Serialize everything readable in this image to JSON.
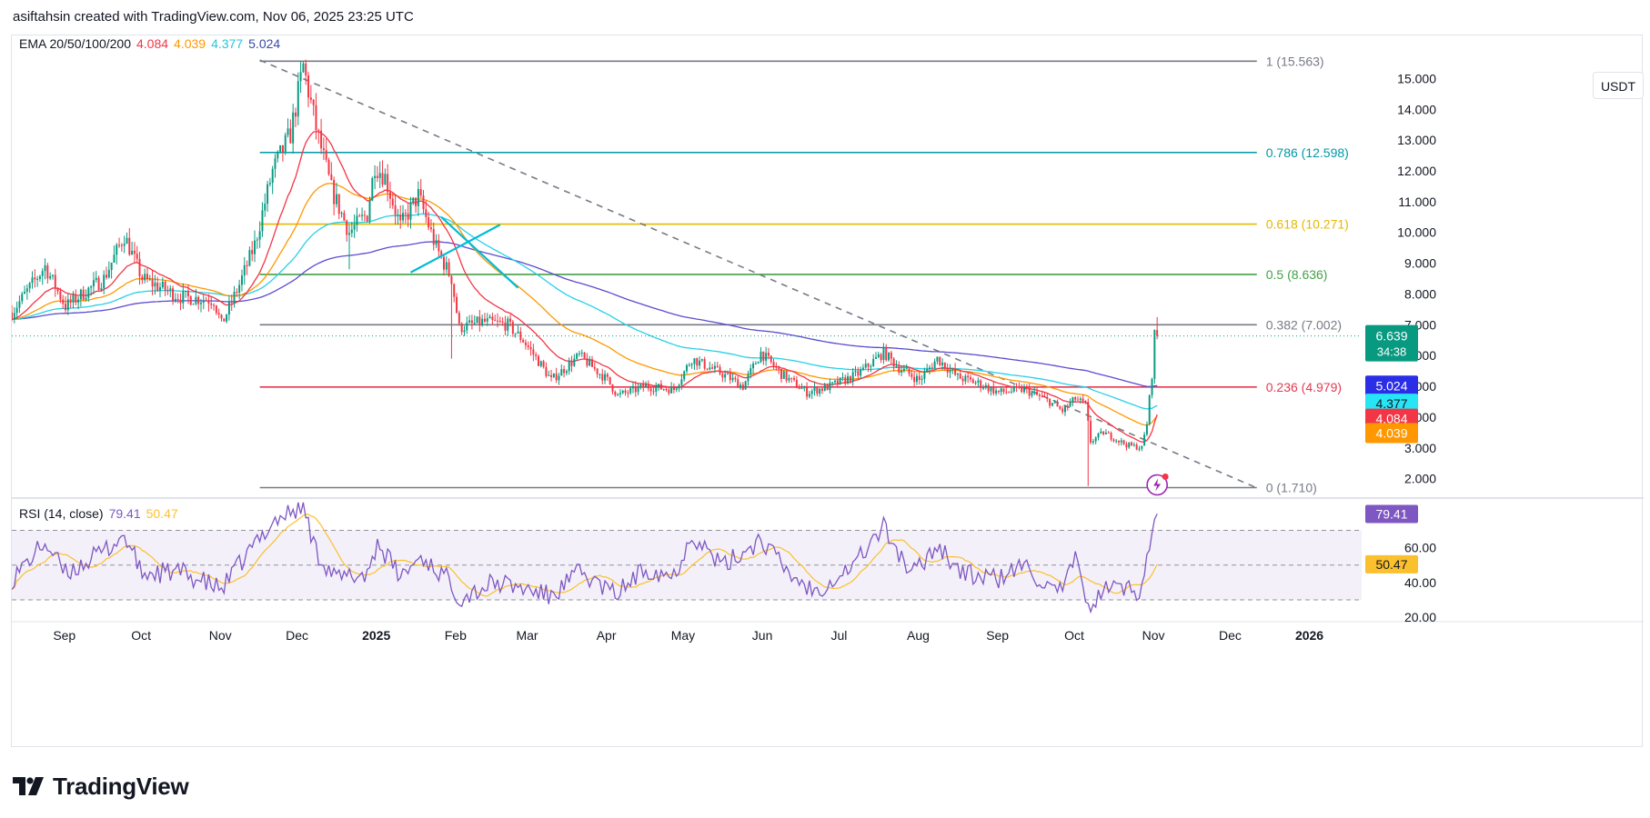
{
  "header": {
    "text": "asiftahsin created with TradingView.com, Nov 06, 2025 23:25 UTC"
  },
  "currency": "USDT",
  "brand": {
    "name": "TradingView"
  },
  "colors": {
    "up": "#089981",
    "down": "#f23645",
    "ema20": "#f23645",
    "ema50": "#ff9800",
    "ema100": "#26d0e6",
    "ema200": "#5b4ccf",
    "rsi": "#7e57c2",
    "rsi_ma": "#fbc02d",
    "trendline": "#787b86"
  },
  "legend": {
    "ema": {
      "label": "EMA 20/50/100/200",
      "v20": "4.084",
      "v50": "4.039",
      "v100": "4.377",
      "v200": "5.024"
    },
    "rsi": {
      "label": "RSI (14, close)",
      "value": "79.41",
      "ma": "50.47"
    }
  },
  "chart_data": {
    "type": "candlestick",
    "symbol_quote": "USDT",
    "price_axis": {
      "ticks": [
        "2.000",
        "3.000",
        "4.000",
        "5.000",
        "6.000",
        "7.000",
        "8.000",
        "9.000",
        "10.000",
        "11.000",
        "12.000",
        "13.000",
        "14.000",
        "15.000"
      ],
      "range": [
        1.4,
        16.4
      ]
    },
    "time_axis": {
      "labels": [
        "Sep",
        "Oct",
        "Nov",
        "Dec",
        "2025",
        "Feb",
        "Mar",
        "Apr",
        "May",
        "Jun",
        "Jul",
        "Aug",
        "Sep",
        "Oct",
        "Nov",
        "Dec",
        "2026"
      ],
      "range": [
        "2024-08-15",
        "2026-01-25"
      ]
    },
    "last_price": {
      "value": "6.639",
      "countdown": "34:38"
    },
    "ema_badges": [
      {
        "value": "5.024",
        "color": "#2a2ee6",
        "text_color": "#ffffff"
      },
      {
        "value": "4.377",
        "color": "#26e6f5",
        "text_color": "#131722"
      },
      {
        "value": "4.084",
        "color": "#f23645",
        "text_color": "#ffffff"
      },
      {
        "value": "4.039",
        "color": "#ff9800",
        "text_color": "#ffffff"
      }
    ],
    "fibonacci": [
      {
        "level": "1",
        "price": 15.563,
        "label": "1 (15.563)",
        "color": "#787b86"
      },
      {
        "level": "0.786",
        "price": 12.598,
        "label": "0.786 (12.598)",
        "color": "#0097a7"
      },
      {
        "level": "0.618",
        "price": 10.271,
        "label": "0.618 (10.271)",
        "color": "#e6b800"
      },
      {
        "level": "0.5",
        "price": 8.636,
        "label": "0.5 (8.636)",
        "color": "#43a047"
      },
      {
        "level": "0.382",
        "price": 7.002,
        "label": "0.382 (7.002)",
        "color": "#787b86"
      },
      {
        "level": "0.236",
        "price": 4.979,
        "label": "0.236 (4.979)",
        "color": "#e53950"
      },
      {
        "level": "0",
        "price": 1.71,
        "label": "0 (1.710)",
        "color": "#787b86"
      }
    ],
    "fib_time_range": [
      "2024-11-20",
      "2025-12-15"
    ],
    "trendline": {
      "from": [
        "2024-11-20",
        15.6
      ],
      "to": [
        "2025-12-15",
        1.7
      ],
      "style": "dashed"
    },
    "cross_lines": [
      {
        "from": [
          "2025-01-30",
          10.5
        ],
        "to": [
          "2025-03-01",
          8.2
        ]
      },
      {
        "from": [
          "2025-01-18",
          8.7
        ],
        "to": [
          "2025-02-22",
          10.25
        ]
      }
    ],
    "price_anchors": [
      [
        "2024-08-15",
        7.4
      ],
      [
        "2024-08-28",
        8.9
      ],
      [
        "2024-09-05",
        7.6
      ],
      [
        "2024-09-20",
        8.5
      ],
      [
        "2024-09-28",
        9.9
      ],
      [
        "2024-10-05",
        8.5
      ],
      [
        "2024-10-20",
        7.9
      ],
      [
        "2024-11-02",
        7.8
      ],
      [
        "2024-11-05",
        7.0
      ],
      [
        "2024-11-12",
        8.3
      ],
      [
        "2024-11-18",
        9.6
      ],
      [
        "2024-11-25",
        12.0
      ],
      [
        "2024-12-02",
        13.2
      ],
      [
        "2024-12-07",
        15.4
      ],
      [
        "2024-12-12",
        13.4
      ],
      [
        "2024-12-18",
        11.4
      ],
      [
        "2024-12-25",
        10.0
      ],
      [
        "2025-01-01",
        10.6
      ],
      [
        "2025-01-04",
        12.2
      ],
      [
        "2025-01-08",
        11.8
      ],
      [
        "2025-01-14",
        10.2
      ],
      [
        "2025-01-21",
        11.2
      ],
      [
        "2025-01-28",
        9.5
      ],
      [
        "2025-02-03",
        8.5
      ],
      [
        "2025-02-06",
        6.9
      ],
      [
        "2025-02-15",
        7.1
      ],
      [
        "2025-02-25",
        7.0
      ],
      [
        "2025-03-03",
        6.5
      ],
      [
        "2025-03-10",
        5.7
      ],
      [
        "2025-03-14",
        5.2
      ],
      [
        "2025-03-25",
        6.0
      ],
      [
        "2025-04-05",
        5.2
      ],
      [
        "2025-04-09",
        4.7
      ],
      [
        "2025-04-20",
        5.0
      ],
      [
        "2025-05-01",
        4.9
      ],
      [
        "2025-05-08",
        5.9
      ],
      [
        "2025-05-20",
        5.4
      ],
      [
        "2025-05-28",
        5.0
      ],
      [
        "2025-06-04",
        6.1
      ],
      [
        "2025-06-12",
        5.4
      ],
      [
        "2025-06-22",
        4.8
      ],
      [
        "2025-07-01",
        5.0
      ],
      [
        "2025-07-12",
        5.4
      ],
      [
        "2025-07-22",
        6.1
      ],
      [
        "2025-07-28",
        5.6
      ],
      [
        "2025-08-05",
        5.2
      ],
      [
        "2025-08-12",
        5.9
      ],
      [
        "2025-08-20",
        5.3
      ],
      [
        "2025-08-28",
        5.1
      ],
      [
        "2025-09-05",
        4.8
      ],
      [
        "2025-09-15",
        4.9
      ],
      [
        "2025-09-25",
        4.5
      ],
      [
        "2025-09-30",
        4.2
      ],
      [
        "2025-10-05",
        4.6
      ],
      [
        "2025-10-09",
        4.4
      ],
      [
        "2025-10-11",
        3.2
      ],
      [
        "2025-10-16",
        3.5
      ],
      [
        "2025-10-25",
        3.1
      ],
      [
        "2025-10-31",
        3.0
      ],
      [
        "2025-11-02",
        3.8
      ],
      [
        "2025-11-04",
        5.4
      ],
      [
        "2025-11-05",
        6.7
      ],
      [
        "2025-11-06",
        6.64
      ]
    ],
    "ema_endpoints": {
      "ema20": 4.084,
      "ema50": 4.039,
      "ema100": 4.377,
      "ema200": 5.024
    },
    "rsi_panel": {
      "ticks": [
        "20.00",
        "40.00",
        "60.00"
      ],
      "range": [
        18,
        88
      ],
      "bands": {
        "upper": 70,
        "middle": 50,
        "lower": 30
      },
      "last": {
        "rsi": "79.41",
        "ma": "50.47"
      },
      "anchors": [
        [
          "2024-08-15",
          42
        ],
        [
          "2024-08-28",
          63
        ],
        [
          "2024-09-05",
          45
        ],
        [
          "2024-09-20",
          58
        ],
        [
          "2024-09-28",
          67
        ],
        [
          "2024-10-05",
          45
        ],
        [
          "2024-10-20",
          46
        ],
        [
          "2024-11-05",
          36
        ],
        [
          "2024-11-18",
          62
        ],
        [
          "2024-11-25",
          75
        ],
        [
          "2024-12-07",
          84
        ],
        [
          "2024-12-12",
          58
        ],
        [
          "2024-12-20",
          42
        ],
        [
          "2025-01-01",
          45
        ],
        [
          "2025-01-05",
          63
        ],
        [
          "2025-01-14",
          43
        ],
        [
          "2025-01-22",
          55
        ],
        [
          "2025-02-03",
          40
        ],
        [
          "2025-02-06",
          31
        ],
        [
          "2025-02-20",
          40
        ],
        [
          "2025-03-05",
          36
        ],
        [
          "2025-03-14",
          32
        ],
        [
          "2025-03-25",
          46
        ],
        [
          "2025-04-08",
          33
        ],
        [
          "2025-04-20",
          48
        ],
        [
          "2025-05-01",
          44
        ],
        [
          "2025-05-08",
          68
        ],
        [
          "2025-05-20",
          49
        ],
        [
          "2025-06-04",
          65
        ],
        [
          "2025-06-15",
          45
        ],
        [
          "2025-06-25",
          35
        ],
        [
          "2025-07-10",
          50
        ],
        [
          "2025-07-22",
          72
        ],
        [
          "2025-08-02",
          44
        ],
        [
          "2025-08-12",
          62
        ],
        [
          "2025-08-22",
          45
        ],
        [
          "2025-09-05",
          42
        ],
        [
          "2025-09-15",
          50
        ],
        [
          "2025-09-28",
          32
        ],
        [
          "2025-10-05",
          52
        ],
        [
          "2025-10-11",
          26
        ],
        [
          "2025-10-18",
          38
        ],
        [
          "2025-10-30",
          35
        ],
        [
          "2025-11-04",
          70
        ],
        [
          "2025-11-06",
          79.41
        ]
      ]
    }
  }
}
